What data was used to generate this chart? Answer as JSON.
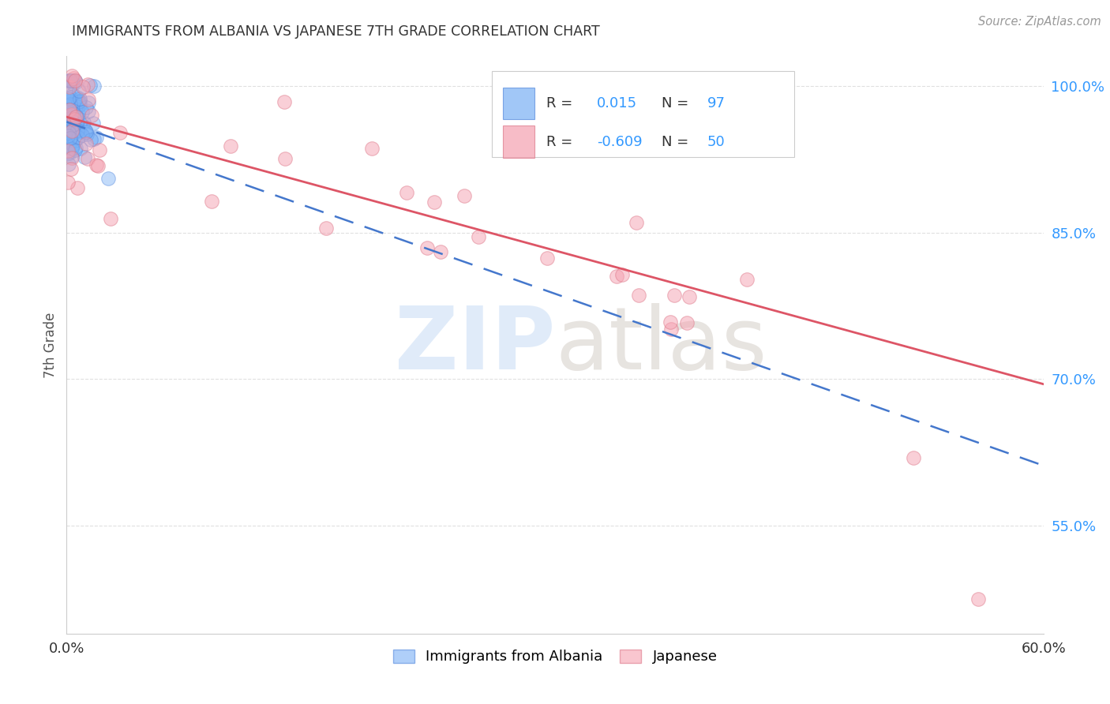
{
  "title": "IMMIGRANTS FROM ALBANIA VS JAPANESE 7TH GRADE CORRELATION CHART",
  "source": "Source: ZipAtlas.com",
  "ylabel": "7th Grade",
  "xlim": [
    0.0,
    0.6
  ],
  "ylim": [
    0.44,
    1.03
  ],
  "yticks": [
    0.55,
    0.7,
    0.85,
    1.0
  ],
  "ytick_labels": [
    "55.0%",
    "70.0%",
    "85.0%",
    "100.0%"
  ],
  "legend_r_albania": "0.015",
  "legend_n_albania": "97",
  "legend_r_japanese": "-0.609",
  "legend_n_japanese": "50",
  "albania_color": "#7ab0f5",
  "albania_edge": "#5588dd",
  "japanese_color": "#f5a0b0",
  "japanese_edge": "#dd7788",
  "trendline_albania_color": "#4477cc",
  "trendline_japanese_color": "#dd5566",
  "grid_color": "#dddddd",
  "background_color": "#ffffff",
  "title_color": "#333333",
  "source_color": "#999999",
  "tick_color": "#3399ff",
  "label_color": "#555555"
}
